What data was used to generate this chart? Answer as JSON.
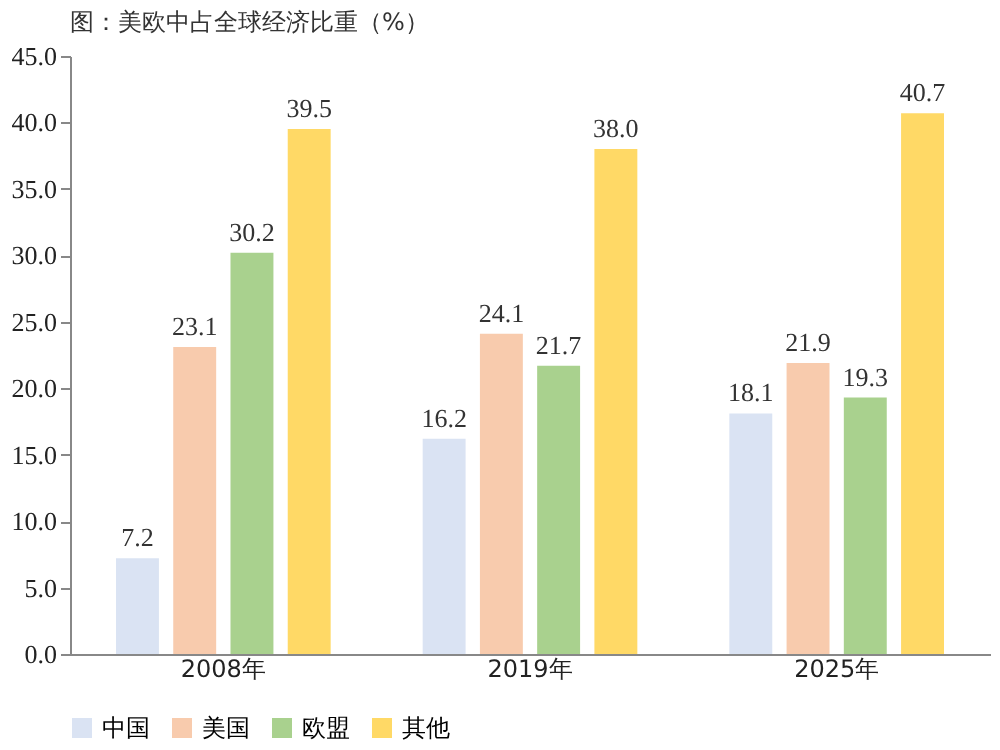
{
  "chart_data": {
    "type": "bar",
    "title": "图：美欧中占全球经济比重（%）",
    "categories": [
      "2008年",
      "2019年",
      "2025年"
    ],
    "series": [
      {
        "name": "中国",
        "color": "#dae3f3",
        "values": [
          7.2,
          16.2,
          18.1
        ],
        "value_labels": [
          "7.2",
          "16.2",
          "18.1"
        ]
      },
      {
        "name": "美国",
        "color": "#f8cbad",
        "values": [
          23.1,
          24.1,
          21.9
        ],
        "value_labels": [
          "23.1",
          "24.1",
          "21.9"
        ]
      },
      {
        "name": "欧盟",
        "color": "#a9d18e",
        "values": [
          30.2,
          21.7,
          19.3
        ],
        "value_labels": [
          "30.2",
          "21.7",
          "19.3"
        ]
      },
      {
        "name": "其他",
        "color": "#ffd966",
        "values": [
          39.5,
          38.0,
          40.7
        ],
        "value_labels": [
          "39.5",
          "38.0",
          "40.7"
        ]
      }
    ],
    "ylim": [
      0,
      45
    ],
    "yticks": [
      {
        "value": 0,
        "label": "0.0"
      },
      {
        "value": 5,
        "label": "5.0"
      },
      {
        "value": 10,
        "label": "10.0"
      },
      {
        "value": 15,
        "label": "15.0"
      },
      {
        "value": 20,
        "label": "20.0"
      },
      {
        "value": 25,
        "label": "25.0"
      },
      {
        "value": 30,
        "label": "30.0"
      },
      {
        "value": 35,
        "label": "35.0"
      },
      {
        "value": 40,
        "label": "40.0"
      },
      {
        "value": 45,
        "label": "45.0"
      }
    ],
    "legend": "bottom",
    "grid": false
  }
}
